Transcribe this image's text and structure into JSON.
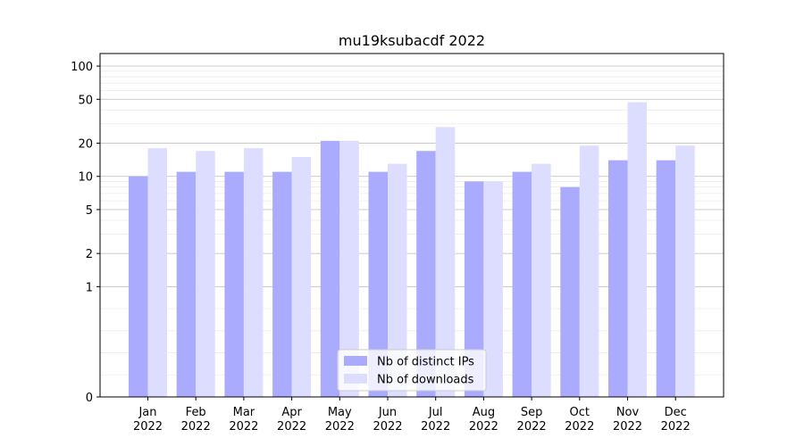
{
  "chart_data": {
    "type": "bar",
    "title": "mu19ksubacdf 2022",
    "xlabel": "",
    "ylabel": "",
    "yscale": "symlog",
    "ylim": [
      0,
      130
    ],
    "yticks": [
      0,
      1,
      2,
      5,
      10,
      20,
      50,
      100
    ],
    "ytick_labels": [
      "0",
      "1",
      "2",
      "5",
      "10",
      "20",
      "50",
      "100"
    ],
    "grid": true,
    "legend_position": "lower-center",
    "categories": [
      "Jan\n2022",
      "Feb\n2022",
      "Mar\n2022",
      "Apr\n2022",
      "May\n2022",
      "Jun\n2022",
      "Jul\n2022",
      "Aug\n2022",
      "Sep\n2022",
      "Oct\n2022",
      "Nov\n2022",
      "Dec\n2022"
    ],
    "series": [
      {
        "name": "Nb of distinct IPs",
        "color": "#aaaaff",
        "values": [
          10,
          11,
          11,
          11,
          21,
          11,
          17,
          9,
          11,
          8,
          14,
          14
        ]
      },
      {
        "name": "Nb of downloads",
        "color": "#ddddff",
        "values": [
          18,
          17,
          18,
          15,
          21,
          13,
          28,
          9,
          13,
          19,
          47,
          19
        ]
      }
    ]
  }
}
